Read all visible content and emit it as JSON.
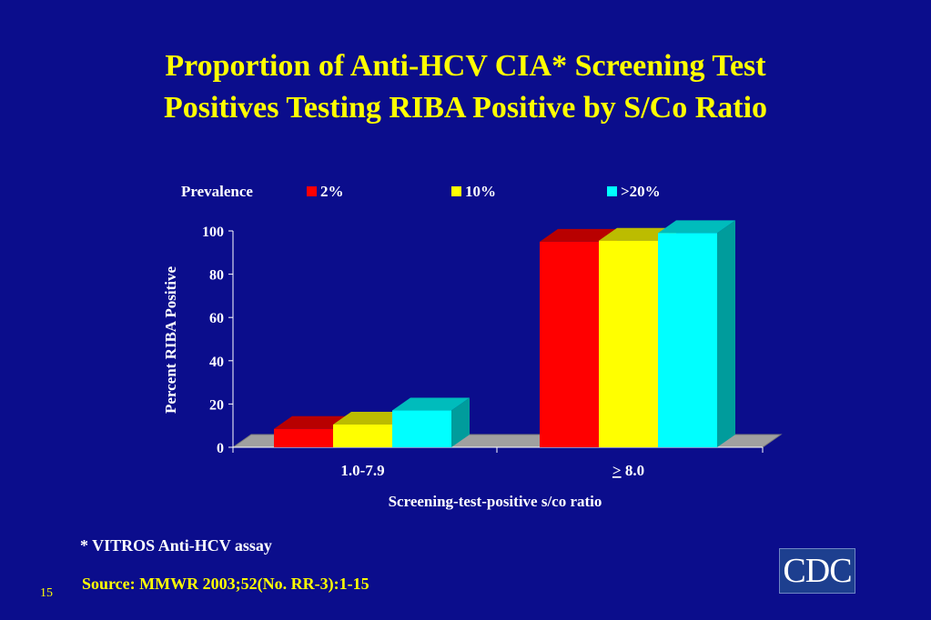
{
  "title_line1": "Proportion of Anti-HCV CIA* Screening Test",
  "title_line2": "Positives Testing RIBA Positive by S/Co Ratio",
  "footnote": "* VITROS Anti-HCV assay",
  "source": "Source: MMWR 2003;52(No. RR-3):1-15",
  "slide_number": "15",
  "logo_text": "CDC",
  "chart_data": {
    "type": "bar",
    "title": "",
    "xlabel": "Screening-test-positive s/co ratio",
    "ylabel": "Percent RIBA Positive",
    "legend_title": "Prevalence",
    "legend_position": "top",
    "categories": [
      "1.0-7.9",
      "> 8.0"
    ],
    "series": [
      {
        "name": "2%",
        "values": [
          8.5,
          95
        ],
        "color": "#ff0000",
        "top_color": "#b80000",
        "side_color": "#a00000"
      },
      {
        "name": "10%",
        "values": [
          10.5,
          95.5
        ],
        "color": "#ffff00",
        "top_color": "#bcbc00",
        "side_color": "#a8a800"
      },
      {
        "name": ">20%",
        "values": [
          17,
          99
        ],
        "color": "#00ffff",
        "top_color": "#00bcbc",
        "side_color": "#009c9c"
      }
    ],
    "ylim": [
      0,
      100
    ],
    "yticks": [
      0,
      20,
      40,
      60,
      80,
      100
    ],
    "grid": false,
    "style": "3d"
  }
}
